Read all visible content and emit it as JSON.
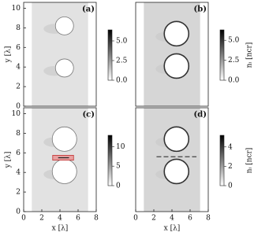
{
  "chart_data": [
    {
      "type": "image",
      "label": "(a)",
      "ylabel": "y [λ]",
      "xlim": [
        0,
        8
      ],
      "ylim": [
        0,
        10.6
      ],
      "yticks": [
        0,
        2,
        4,
        6,
        8,
        10
      ],
      "clim": [
        0,
        6.4
      ],
      "cticks": [
        {
          "value": 0,
          "label": "0.0"
        },
        2.5,
        {
          "value": 5,
          "label": "5.0"
        }
      ]
    },
    {
      "type": "image",
      "label": "(b)",
      "clabel": "nᵢ [ncr]",
      "xlim": [
        0,
        8
      ],
      "ylim": [
        0,
        10.6
      ],
      "clim": [
        0,
        6.3
      ],
      "cticks": [
        {
          "value": 0,
          "label": "0.0"
        },
        2.5,
        {
          "value": 5,
          "label": "5.0"
        }
      ]
    },
    {
      "type": "image",
      "label": "(c)",
      "ylabel": "y [λ]",
      "xlabel": "x [λ]",
      "xlim": [
        0,
        8
      ],
      "ylim": [
        0,
        10.6
      ],
      "xticks": [
        0,
        2,
        4,
        6,
        8
      ],
      "yticks": [
        0,
        2,
        4,
        6,
        8,
        10
      ],
      "clim": [
        0,
        12.9
      ],
      "cticks": [
        0,
        5,
        10
      ]
    },
    {
      "type": "image",
      "label": "(d)",
      "clabel": "nᵢ [ncr]",
      "xlabel": "x [λ]",
      "xlim": [
        0,
        8
      ],
      "ylim": [
        0,
        10.6
      ],
      "xticks": [
        0,
        2,
        4,
        6,
        8
      ],
      "clim": [
        0,
        5.2
      ],
      "cticks": [
        0,
        2,
        4
      ]
    }
  ]
}
